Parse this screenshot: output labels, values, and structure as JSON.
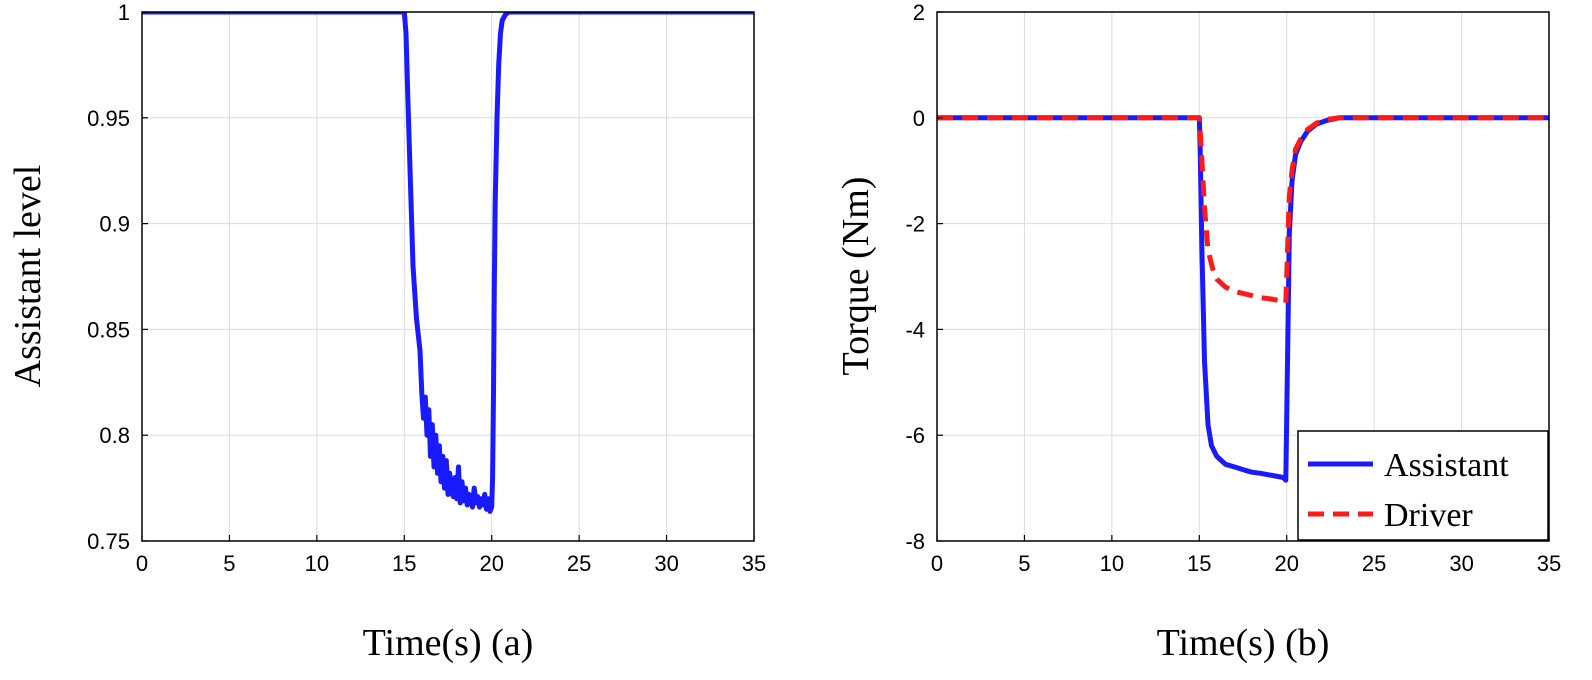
{
  "chart_data": [
    {
      "type": "line",
      "xlabel": "Time(s) (a)",
      "ylabel": "Assistant level",
      "xlim": [
        0,
        35
      ],
      "ylim": [
        0.75,
        1
      ],
      "xticks": [
        0,
        5,
        10,
        15,
        20,
        25,
        30,
        35
      ],
      "xtick_labels": [
        "0",
        "5",
        "10",
        "15",
        "20",
        "25",
        "30",
        "35"
      ],
      "yticks": [
        0.75,
        0.8,
        0.85,
        0.9,
        0.95,
        1
      ],
      "ytick_labels": [
        "0.75",
        "0.8",
        "0.85",
        "0.9",
        "0.95",
        "1"
      ],
      "grid": true,
      "series": [
        {
          "color": "#1a1aff",
          "style": "solid",
          "x": [
            0,
            15.0,
            15.1,
            15.2,
            15.35,
            15.5,
            15.7,
            15.9,
            16.0,
            16.1,
            16.2,
            16.3,
            16.4,
            16.5,
            16.6,
            16.7,
            16.8,
            16.9,
            17.0,
            17.1,
            17.2,
            17.3,
            17.4,
            17.5,
            17.6,
            17.7,
            17.8,
            17.9,
            18.0,
            18.1,
            18.2,
            18.3,
            18.4,
            18.5,
            18.6,
            18.7,
            18.8,
            18.9,
            19.0,
            19.1,
            19.2,
            19.3,
            19.4,
            19.5,
            19.6,
            19.7,
            19.8,
            19.9,
            20.0,
            20.05,
            20.1,
            20.15,
            20.2,
            20.3,
            20.4,
            20.5,
            20.6,
            20.8,
            21.0,
            21.5,
            35
          ],
          "y": [
            1,
            1,
            0.99,
            0.96,
            0.92,
            0.88,
            0.855,
            0.84,
            0.82,
            0.808,
            0.818,
            0.8,
            0.812,
            0.79,
            0.805,
            0.785,
            0.8,
            0.782,
            0.795,
            0.778,
            0.79,
            0.775,
            0.788,
            0.772,
            0.782,
            0.775,
            0.771,
            0.78,
            0.77,
            0.785,
            0.768,
            0.778,
            0.769,
            0.775,
            0.767,
            0.772,
            0.77,
            0.766,
            0.775,
            0.768,
            0.771,
            0.766,
            0.77,
            0.767,
            0.772,
            0.765,
            0.77,
            0.764,
            0.766,
            0.78,
            0.82,
            0.87,
            0.91,
            0.95,
            0.975,
            0.99,
            0.996,
            0.999,
            1,
            1,
            1
          ]
        }
      ]
    },
    {
      "type": "line",
      "xlabel": "Time(s) (b)",
      "ylabel": "Torque (Nm)",
      "xlim": [
        0,
        35
      ],
      "ylim": [
        -8,
        2
      ],
      "xticks": [
        0,
        5,
        10,
        15,
        20,
        25,
        30,
        35
      ],
      "xtick_labels": [
        "0",
        "5",
        "10",
        "15",
        "20",
        "25",
        "30",
        "35"
      ],
      "yticks": [
        -8,
        -6,
        -4,
        -2,
        0,
        2
      ],
      "ytick_labels": [
        "-8",
        "-6",
        "-4",
        "-2",
        "0",
        "2"
      ],
      "grid": true,
      "legend": {
        "location": "bottom-right",
        "entries": [
          "Assistant",
          "Driver"
        ]
      },
      "series": [
        {
          "name": "Assistant",
          "color": "#1a1aff",
          "style": "solid",
          "x": [
            0,
            15.0,
            15.05,
            15.15,
            15.3,
            15.5,
            15.7,
            16.0,
            16.5,
            17.0,
            17.5,
            18.0,
            18.5,
            19.0,
            19.5,
            19.8,
            19.95,
            20.05,
            20.15,
            20.3,
            20.5,
            20.8,
            21.2,
            21.7,
            22.3,
            23.0,
            23.5,
            35
          ],
          "y": [
            0,
            0,
            -0.6,
            -2.5,
            -4.6,
            -5.8,
            -6.2,
            -6.4,
            -6.55,
            -6.6,
            -6.65,
            -6.7,
            -6.72,
            -6.75,
            -6.78,
            -6.8,
            -6.85,
            -4.5,
            -2.2,
            -1.2,
            -0.7,
            -0.45,
            -0.25,
            -0.12,
            -0.05,
            0,
            0,
            0
          ]
        },
        {
          "name": "Driver",
          "color": "#ff1a1a",
          "style": "dashed",
          "x": [
            0,
            15.0,
            15.1,
            15.3,
            15.5,
            15.8,
            16.0,
            16.5,
            17.0,
            17.5,
            18.0,
            18.5,
            19.0,
            19.5,
            19.8,
            19.95,
            20.05,
            20.15,
            20.3,
            20.5,
            20.8,
            21.2,
            21.7,
            22.3,
            23.0,
            35
          ],
          "y": [
            0,
            0,
            -0.5,
            -1.7,
            -2.5,
            -2.9,
            -3.05,
            -3.2,
            -3.28,
            -3.32,
            -3.36,
            -3.4,
            -3.42,
            -3.45,
            -3.48,
            -3.5,
            -2.5,
            -1.5,
            -1.0,
            -0.6,
            -0.4,
            -0.22,
            -0.1,
            -0.03,
            0,
            0
          ]
        }
      ]
    }
  ]
}
